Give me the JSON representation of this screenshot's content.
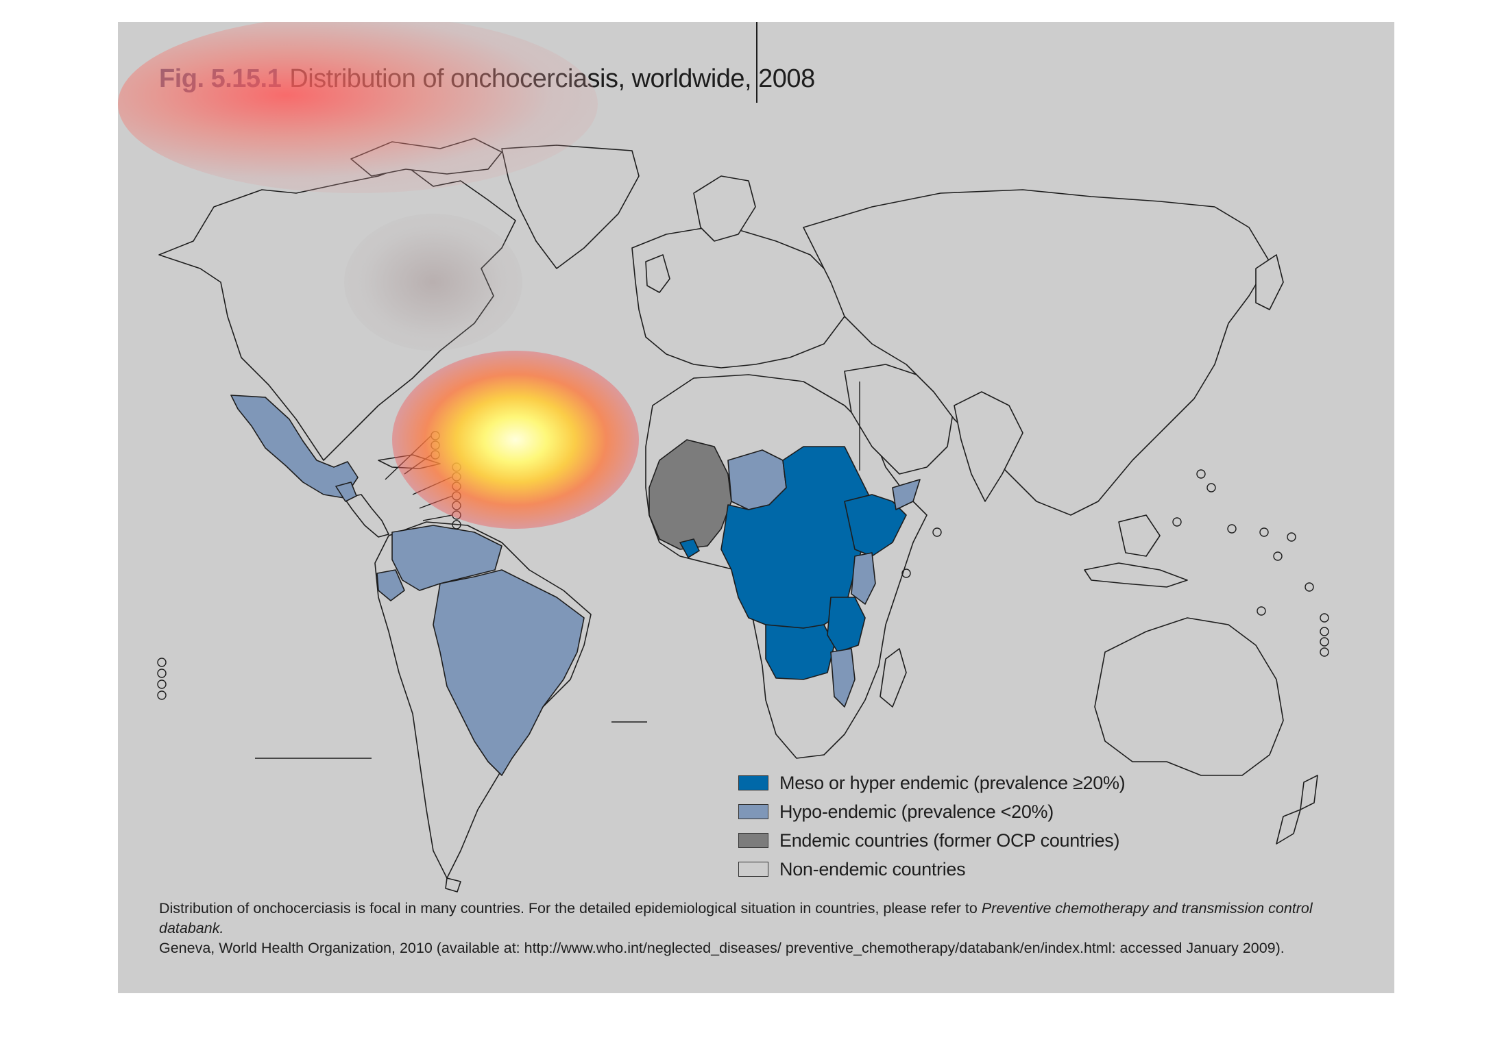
{
  "figure": {
    "number": "Fig. 5.15.1",
    "title": "Distribution of onchocerciasis, worldwide, 2008"
  },
  "colors": {
    "panel_background": "#cdcdcd",
    "meso_hyper": "#0068a8",
    "hypo": "#7f97b8",
    "former_ocp": "#7c7c7c",
    "non_endemic": "#cdcdcd",
    "border": "#1d1d1d"
  },
  "legend": {
    "items": [
      {
        "key": "meso_hyper",
        "label": "Meso or hyper endemic (prevalence ≥20%)",
        "color": "#0068a8"
      },
      {
        "key": "hypo",
        "label": "Hypo-endemic (prevalence <20%)",
        "color": "#7f97b8"
      },
      {
        "key": "former_ocp",
        "label": "Endemic countries (former OCP countries)",
        "color": "#7c7c7c"
      },
      {
        "key": "non_endemic",
        "label": "Non-endemic countries",
        "color": "#cdcdcd"
      }
    ]
  },
  "caption": {
    "line1_start": "Distribution of onchocerciasis is focal in many countries. For the detailed epidemiological situation in countries, please refer to ",
    "line1_italic": "Preventive chemotherapy and transmission control databank.",
    "line2": "Geneva, World Health Organization, 2010 (available at: http://www.who.int/neglected_diseases/ preventive_chemotherapy/databank/en/index.html: accessed January 2009)."
  },
  "overlay": {
    "type": "attention-heatmap"
  }
}
